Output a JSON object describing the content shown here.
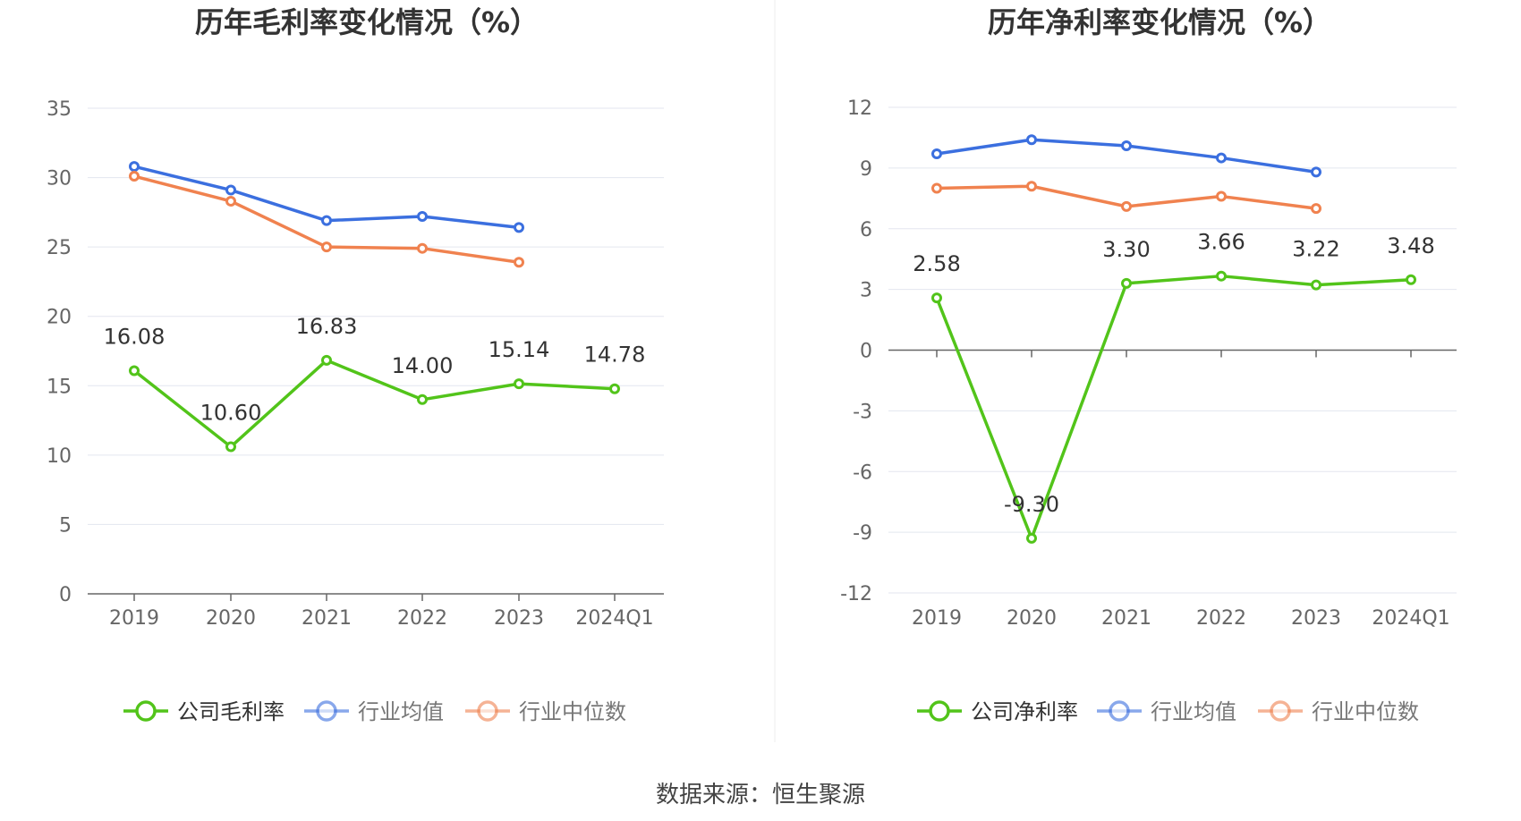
{
  "source": "数据来源：恒生聚源",
  "chart_data": [
    {
      "type": "line",
      "title": "历年毛利率变化情况（%）",
      "categories": [
        "2019",
        "2020",
        "2021",
        "2022",
        "2023",
        "2024Q1"
      ],
      "ylim": [
        0,
        35
      ],
      "yticks": [
        "0",
        "5",
        "10",
        "15",
        "20",
        "25",
        "30",
        "35"
      ],
      "grid": true,
      "legend_position": "bottom",
      "series": [
        {
          "name": "公司毛利率",
          "color": "#52c41a",
          "values": [
            16.08,
            10.6,
            16.83,
            14.0,
            15.14,
            14.78
          ],
          "data_labels": [
            "16.08",
            "10.60",
            "16.83",
            "14.00",
            "15.14",
            "14.78"
          ]
        },
        {
          "name": "行业均值",
          "color": "#3b6fdf",
          "values": [
            30.8,
            29.1,
            26.9,
            27.2,
            26.4,
            null
          ]
        },
        {
          "name": "行业中位数",
          "color": "#f0824f",
          "values": [
            30.1,
            28.3,
            25.0,
            24.9,
            23.9,
            null
          ]
        }
      ]
    },
    {
      "type": "line",
      "title": "历年净利率变化情况（%）",
      "categories": [
        "2019",
        "2020",
        "2021",
        "2022",
        "2023",
        "2024Q1"
      ],
      "ylim": [
        -12,
        12
      ],
      "yticks": [
        "-12",
        "-9",
        "-6",
        "-3",
        "0",
        "3",
        "6",
        "9",
        "12"
      ],
      "grid": true,
      "legend_position": "bottom",
      "series": [
        {
          "name": "公司净利率",
          "color": "#52c41a",
          "values": [
            2.58,
            -9.3,
            3.3,
            3.66,
            3.22,
            3.48
          ],
          "data_labels": [
            "2.58",
            "-9.30",
            "3.30",
            "3.66",
            "3.22",
            "3.48"
          ]
        },
        {
          "name": "行业均值",
          "color": "#3b6fdf",
          "values": [
            9.7,
            10.4,
            10.1,
            9.5,
            8.8,
            null
          ]
        },
        {
          "name": "行业中位数",
          "color": "#f0824f",
          "values": [
            8.0,
            8.1,
            7.1,
            7.6,
            7.0,
            null
          ]
        }
      ]
    }
  ]
}
